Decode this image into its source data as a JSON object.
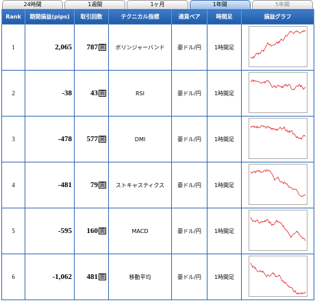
{
  "tabs": [
    "24時間",
    "1週間",
    "1ヶ月",
    "1年間",
    "5年間"
  ],
  "table": {
    "headers": [
      "Rank",
      "期間損益(pips)",
      "取引回数",
      "テクニカル指標",
      "通貨ペア",
      "時間足",
      "損益グラフ"
    ],
    "rows": [
      [
        "1",
        "2,065",
        "787",
        "回",
        "ボリンジャーバンド",
        "豪ドル/円",
        "1時間足"
      ],
      [
        "2",
        "-38",
        "43",
        "回",
        "RSI",
        "豪ドル/円",
        "1時間足"
      ],
      [
        "3",
        "-478",
        "577",
        "回",
        "DMI",
        "豪ドル/円",
        "1時間足"
      ],
      [
        "4",
        "-481",
        "79",
        "回",
        "ストキャスティクス",
        "豪ドル/円",
        "1時間足"
      ],
      [
        "5",
        "-595",
        "160",
        "回",
        "MACD",
        "豪ドル/円",
        "1時間足"
      ],
      [
        "6",
        "-1,062",
        "481",
        "回",
        "移動平均",
        "豪ドル/円",
        "1時間足"
      ]
    ]
  }
}
